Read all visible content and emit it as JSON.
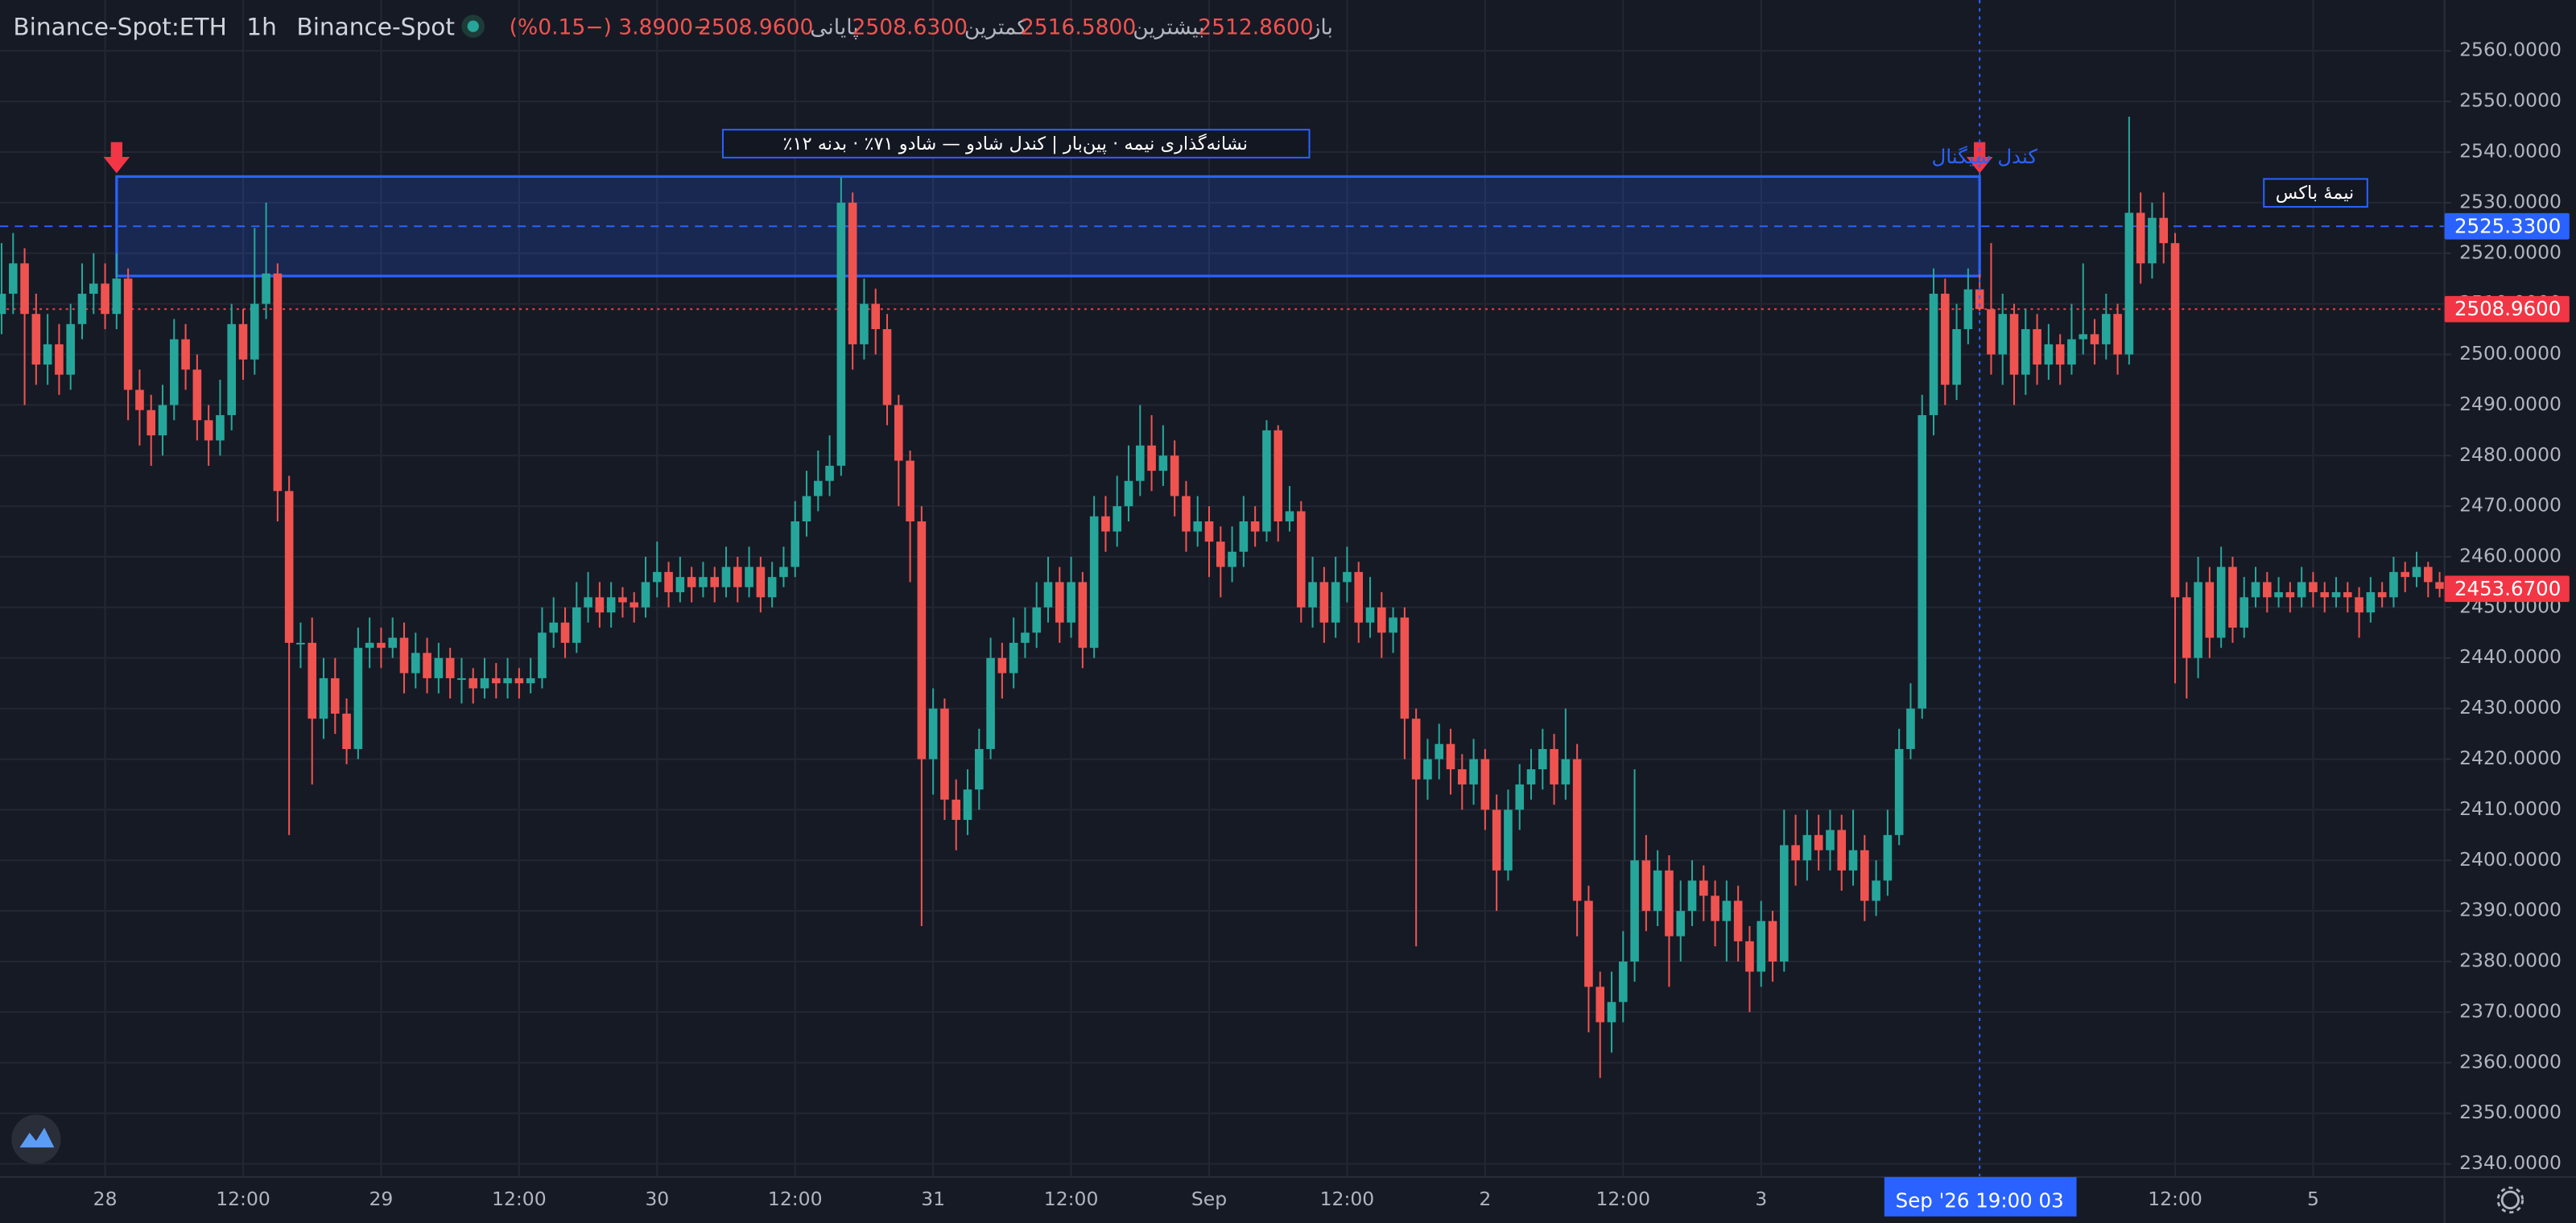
{
  "chart_data": {
    "type": "candlestick",
    "header": {
      "symbol": "Binance-Spot:ETH",
      "interval": "1h",
      "exchange": "Binance-Spot",
      "ohlc": [
        {
          "label": "باز",
          "value": "2512.8600"
        },
        {
          "label": "بیشترین",
          "value": "2516.5800"
        },
        {
          "label": "کمترین",
          "value": "2508.6300"
        },
        {
          "label": "پایانی",
          "value": "2508.9600"
        }
      ],
      "change": "−3.8900 (−0.15%)"
    },
    "up_color": "#26a69a",
    "down_color": "#ef5350",
    "open": [
      2508,
      2512,
      2518,
      2508,
      2498,
      2502,
      2496,
      2506,
      2512,
      2514,
      2508,
      2515,
      2493,
      2489,
      2484,
      2490,
      2503,
      2497,
      2487,
      2483,
      2488,
      2506,
      2499,
      2510,
      2516,
      2473,
      2443,
      2443,
      2428,
      2436,
      2429,
      2422,
      2442,
      2443,
      2442,
      2444,
      2437,
      2441,
      2436,
      2440,
      2436,
      2436,
      2434,
      2436,
      2435,
      2436,
      2435,
      2436,
      2445,
      2447,
      2443,
      2450,
      2452,
      2449,
      2452,
      2451,
      2450,
      2455,
      2457,
      2453,
      2456,
      2454,
      2456,
      2454,
      2458,
      2454,
      2458,
      2452,
      2456,
      2458,
      2467,
      2472,
      2475,
      2478,
      2530,
      2502,
      2510,
      2505,
      2490,
      2479,
      2467,
      2420,
      2430,
      2412,
      2408,
      2414,
      2422,
      2440,
      2437,
      2443,
      2445,
      2450,
      2455,
      2447,
      2455,
      2442,
      2468,
      2465,
      2470,
      2475,
      2482,
      2477,
      2480,
      2472,
      2465,
      2467,
      2463,
      2458,
      2461,
      2467,
      2465,
      2485,
      2467,
      2469,
      2450,
      2455,
      2447,
      2455,
      2457,
      2447,
      2450,
      2445,
      2448,
      2428,
      2416,
      2420,
      2423,
      2418,
      2415,
      2420,
      2410,
      2398,
      2410,
      2415,
      2418,
      2422,
      2415,
      2420,
      2392,
      2375,
      2368,
      2372,
      2380,
      2400,
      2390,
      2398,
      2385,
      2390,
      2396,
      2393,
      2388,
      2392,
      2384,
      2378,
      2388,
      2380,
      2403,
      2400,
      2405,
      2402,
      2406,
      2398,
      2402,
      2392,
      2396,
      2405,
      2422,
      2430,
      2488,
      2512,
      2494,
      2505,
      2512.86,
      2508.96,
      2500,
      2508,
      2496,
      2505,
      2498,
      2502,
      2498,
      2503,
      2504,
      2502,
      2508,
      2500,
      2528,
      2518,
      2527,
      2522,
      2452,
      2440,
      2455,
      2444,
      2458,
      2446,
      2452,
      2455,
      2452,
      2453,
      2452,
      2455,
      2453,
      2452,
      2453,
      2452,
      2449,
      2453,
      2452,
      2457,
      2456,
      2458,
      2455
    ],
    "high": [
      2522,
      2524,
      2521,
      2512,
      2508,
      2506,
      2510,
      2518,
      2520,
      2518,
      2520,
      2517,
      2497,
      2492,
      2494,
      2507,
      2506,
      2500,
      2490,
      2495,
      2510,
      2509,
      2525,
      2530,
      2518,
      2476,
      2447,
      2448,
      2440,
      2440,
      2432,
      2446,
      2448,
      2446,
      2448,
      2447,
      2445,
      2444,
      2443,
      2442,
      2440,
      2438,
      2440,
      2439,
      2440,
      2438,
      2440,
      2450,
      2452,
      2450,
      2455,
      2457,
      2455,
      2455,
      2454,
      2453,
      2460,
      2463,
      2459,
      2460,
      2458,
      2459,
      2458,
      2462,
      2460,
      2462,
      2460,
      2459,
      2462,
      2471,
      2477,
      2481,
      2484,
      2535,
      2532,
      2515,
      2513,
      2508,
      2492,
      2481,
      2470,
      2434,
      2432,
      2416,
      2418,
      2426,
      2444,
      2443,
      2448,
      2450,
      2455,
      2460,
      2458,
      2460,
      2457,
      2472,
      2472,
      2476,
      2482,
      2490,
      2488,
      2486,
      2483,
      2475,
      2472,
      2470,
      2466,
      2466,
      2472,
      2470,
      2487,
      2486,
      2474,
      2471,
      2460,
      2458,
      2460,
      2462,
      2459,
      2456,
      2453,
      2450,
      2450,
      2430,
      2424,
      2427,
      2426,
      2421,
      2424,
      2422,
      2413,
      2414,
      2419,
      2422,
      2426,
      2425,
      2430,
      2423,
      2395,
      2378,
      2378,
      2386,
      2418,
      2405,
      2402,
      2401,
      2396,
      2400,
      2399,
      2396,
      2396,
      2395,
      2387,
      2392,
      2390,
      2410,
      2409,
      2410,
      2409,
      2410,
      2409,
      2410,
      2405,
      2400,
      2410,
      2426,
      2435,
      2492,
      2517,
      2515,
      2510,
      2517,
      2516.58,
      2522,
      2512,
      2510,
      2509,
      2508,
      2506,
      2504,
      2510,
      2518,
      2507,
      2512,
      2510,
      2547,
      2532,
      2530,
      2532,
      2524,
      2455,
      2460,
      2458,
      2462,
      2460,
      2456,
      2458,
      2457,
      2456,
      2455,
      2458,
      2457,
      2455,
      2456,
      2455,
      2454,
      2456,
      2455,
      2460,
      2459,
      2461,
      2459,
      2457
    ],
    "low": [
      2504,
      2508,
      2490,
      2494,
      2494,
      2492,
      2493,
      2503,
      2508,
      2505,
      2505,
      2487,
      2482,
      2478,
      2480,
      2487,
      2493,
      2483,
      2478,
      2480,
      2485,
      2495,
      2496,
      2507,
      2467,
      2405,
      2438,
      2415,
      2424,
      2425,
      2419,
      2420,
      2438,
      2438,
      2440,
      2433,
      2434,
      2433,
      2433,
      2432,
      2431,
      2431,
      2432,
      2432,
      2432,
      2432,
      2433,
      2434,
      2442,
      2440,
      2441,
      2447,
      2446,
      2446,
      2448,
      2447,
      2448,
      2452,
      2450,
      2451,
      2451,
      2452,
      2451,
      2452,
      2451,
      2452,
      2449,
      2450,
      2454,
      2456,
      2464,
      2469,
      2472,
      2476,
      2497,
      2499,
      2500,
      2486,
      2470,
      2455,
      2387,
      2413,
      2408,
      2402,
      2405,
      2410,
      2420,
      2432,
      2434,
      2440,
      2442,
      2447,
      2443,
      2444,
      2438,
      2440,
      2461,
      2462,
      2467,
      2472,
      2473,
      2474,
      2468,
      2461,
      2462,
      2456,
      2452,
      2455,
      2458,
      2462,
      2463,
      2463,
      2465,
      2447,
      2446,
      2443,
      2444,
      2451,
      2443,
      2444,
      2440,
      2441,
      2420,
      2383,
      2412,
      2416,
      2413,
      2410,
      2411,
      2406,
      2390,
      2396,
      2406,
      2412,
      2414,
      2411,
      2412,
      2385,
      2366,
      2357,
      2362,
      2368,
      2376,
      2386,
      2387,
      2375,
      2380,
      2387,
      2388,
      2383,
      2380,
      2380,
      2370,
      2375,
      2376,
      2378,
      2395,
      2396,
      2398,
      2398,
      2394,
      2395,
      2388,
      2389,
      2393,
      2403,
      2420,
      2428,
      2484,
      2490,
      2491,
      2502,
      2508.63,
      2496,
      2494,
      2490,
      2492,
      2494,
      2495,
      2494,
      2496,
      2500,
      2498,
      2499,
      2496,
      2498,
      2514,
      2515,
      2518,
      2435,
      2432,
      2436,
      2440,
      2442,
      2443,
      2444,
      2450,
      2449,
      2450,
      2449,
      2450,
      2450,
      2449,
      2450,
      2449,
      2444,
      2447,
      2450,
      2450,
      2453,
      2454,
      2452,
      2452
    ],
    "close": [
      2512,
      2518,
      2508,
      2498,
      2502,
      2496,
      2506,
      2512,
      2514,
      2508,
      2515,
      2493,
      2489,
      2484,
      2490,
      2503,
      2497,
      2487,
      2483,
      2488,
      2506,
      2499,
      2510,
      2516,
      2473,
      2443,
      2443,
      2428,
      2436,
      2429,
      2422,
      2442,
      2443,
      2442,
      2444,
      2437,
      2441,
      2436,
      2440,
      2436,
      2436,
      2434,
      2436,
      2435,
      2436,
      2435,
      2436,
      2445,
      2447,
      2443,
      2450,
      2452,
      2449,
      2452,
      2451,
      2450,
      2455,
      2457,
      2453,
      2456,
      2454,
      2456,
      2454,
      2458,
      2454,
      2458,
      2452,
      2456,
      2458,
      2467,
      2472,
      2475,
      2478,
      2530,
      2502,
      2510,
      2505,
      2490,
      2479,
      2467,
      2420,
      2430,
      2412,
      2408,
      2414,
      2422,
      2440,
      2437,
      2443,
      2445,
      2450,
      2455,
      2447,
      2455,
      2442,
      2468,
      2465,
      2470,
      2475,
      2482,
      2477,
      2480,
      2472,
      2465,
      2467,
      2463,
      2458,
      2461,
      2467,
      2465,
      2485,
      2467,
      2469,
      2450,
      2455,
      2447,
      2455,
      2457,
      2447,
      2450,
      2445,
      2448,
      2428,
      2416,
      2420,
      2423,
      2418,
      2415,
      2420,
      2410,
      2398,
      2410,
      2415,
      2418,
      2422,
      2415,
      2420,
      2392,
      2375,
      2368,
      2372,
      2380,
      2400,
      2390,
      2398,
      2385,
      2390,
      2396,
      2393,
      2388,
      2392,
      2384,
      2378,
      2388,
      2380,
      2403,
      2400,
      2405,
      2402,
      2406,
      2398,
      2402,
      2392,
      2396,
      2405,
      2422,
      2430,
      2488,
      2512,
      2494,
      2505,
      2512.86,
      2508.96,
      2500,
      2508,
      2496,
      2505,
      2498,
      2502,
      2498,
      2503,
      2504,
      2502,
      2508,
      2500,
      2528,
      2518,
      2527,
      2522,
      2452,
      2440,
      2455,
      2444,
      2458,
      2446,
      2452,
      2455,
      2452,
      2453,
      2452,
      2455,
      2453,
      2452,
      2453,
      2452,
      2449,
      2453,
      2452,
      2457,
      2456,
      2458,
      2455,
      2453.67
    ],
    "xlim": [
      -0.14,
      212.43
    ],
    "xticks": [
      {
        "value": 9,
        "label": "28"
      },
      {
        "value": 21,
        "label": "12:00"
      },
      {
        "value": 33,
        "label": "29"
      },
      {
        "value": 45,
        "label": "12:00"
      },
      {
        "value": 57,
        "label": "30"
      },
      {
        "value": 69,
        "label": "12:00"
      },
      {
        "value": 81,
        "label": "31"
      },
      {
        "value": 93,
        "label": "12:00"
      },
      {
        "value": 105,
        "label": "Sep"
      },
      {
        "value": 117,
        "label": "12:00"
      },
      {
        "value": 129,
        "label": "2"
      },
      {
        "value": 141,
        "label": "12:00"
      },
      {
        "value": 153,
        "label": "3"
      },
      {
        "value": 189,
        "label": "12:00"
      },
      {
        "value": 201,
        "label": "5"
      }
    ],
    "ylim": [
      2337.4,
      2570.06
    ],
    "yticks": [
      {
        "value": 2340,
        "label": "2340.0000"
      },
      {
        "value": 2350,
        "label": "2350.0000"
      },
      {
        "value": 2360,
        "label": "2360.0000"
      },
      {
        "value": 2370,
        "label": "2370.0000"
      },
      {
        "value": 2380,
        "label": "2380.0000"
      },
      {
        "value": 2390,
        "label": "2390.0000"
      },
      {
        "value": 2400,
        "label": "2400.0000"
      },
      {
        "value": 2410,
        "label": "2410.0000"
      },
      {
        "value": 2420,
        "label": "2420.0000"
      },
      {
        "value": 2430,
        "label": "2430.0000"
      },
      {
        "value": 2440,
        "label": "2440.0000"
      },
      {
        "value": 2450,
        "label": "2450.0000"
      },
      {
        "value": 2460,
        "label": "2460.0000"
      },
      {
        "value": 2470,
        "label": "2470.0000"
      },
      {
        "value": 2480,
        "label": "2480.0000"
      },
      {
        "value": 2490,
        "label": "2490.0000"
      },
      {
        "value": 2500,
        "label": "2500.0000"
      },
      {
        "value": 2510,
        "label": "2510.0000"
      },
      {
        "value": 2520,
        "label": "2520.0000"
      },
      {
        "value": 2530,
        "label": "2530.0000"
      },
      {
        "value": 2540,
        "label": "2540.0000"
      },
      {
        "value": 2550,
        "label": "2550.0000"
      },
      {
        "value": 2560,
        "label": "2560.0000"
      }
    ],
    "grid": true,
    "box": {
      "start": 10,
      "end": 172,
      "top": 2535.16,
      "bottom": 2515.5,
      "color": "#2962ff"
    },
    "price_lines": [
      {
        "value": 2525.33,
        "label": "2525.3300",
        "color": "#2962ff",
        "style": "dashed"
      },
      {
        "value": 2508.96,
        "label": "2508.9600",
        "color": "#f23645",
        "style": "dotted"
      }
    ],
    "last_price": {
      "value": 2453.67,
      "label": "2453.6700",
      "color": "#f23645"
    },
    "annotations": [
      "٪نشانه‌گذاری نیمه · پین‌بار | کندل شادو — شادو ۷۱٪ · بدنه ۱۲",
      "کندل سیگنال",
      "نیمهٔ باکس"
    ],
    "crosshair": {
      "index": 172,
      "label": "Sep '26  19:00 03",
      "color": "#2962ff"
    }
  }
}
